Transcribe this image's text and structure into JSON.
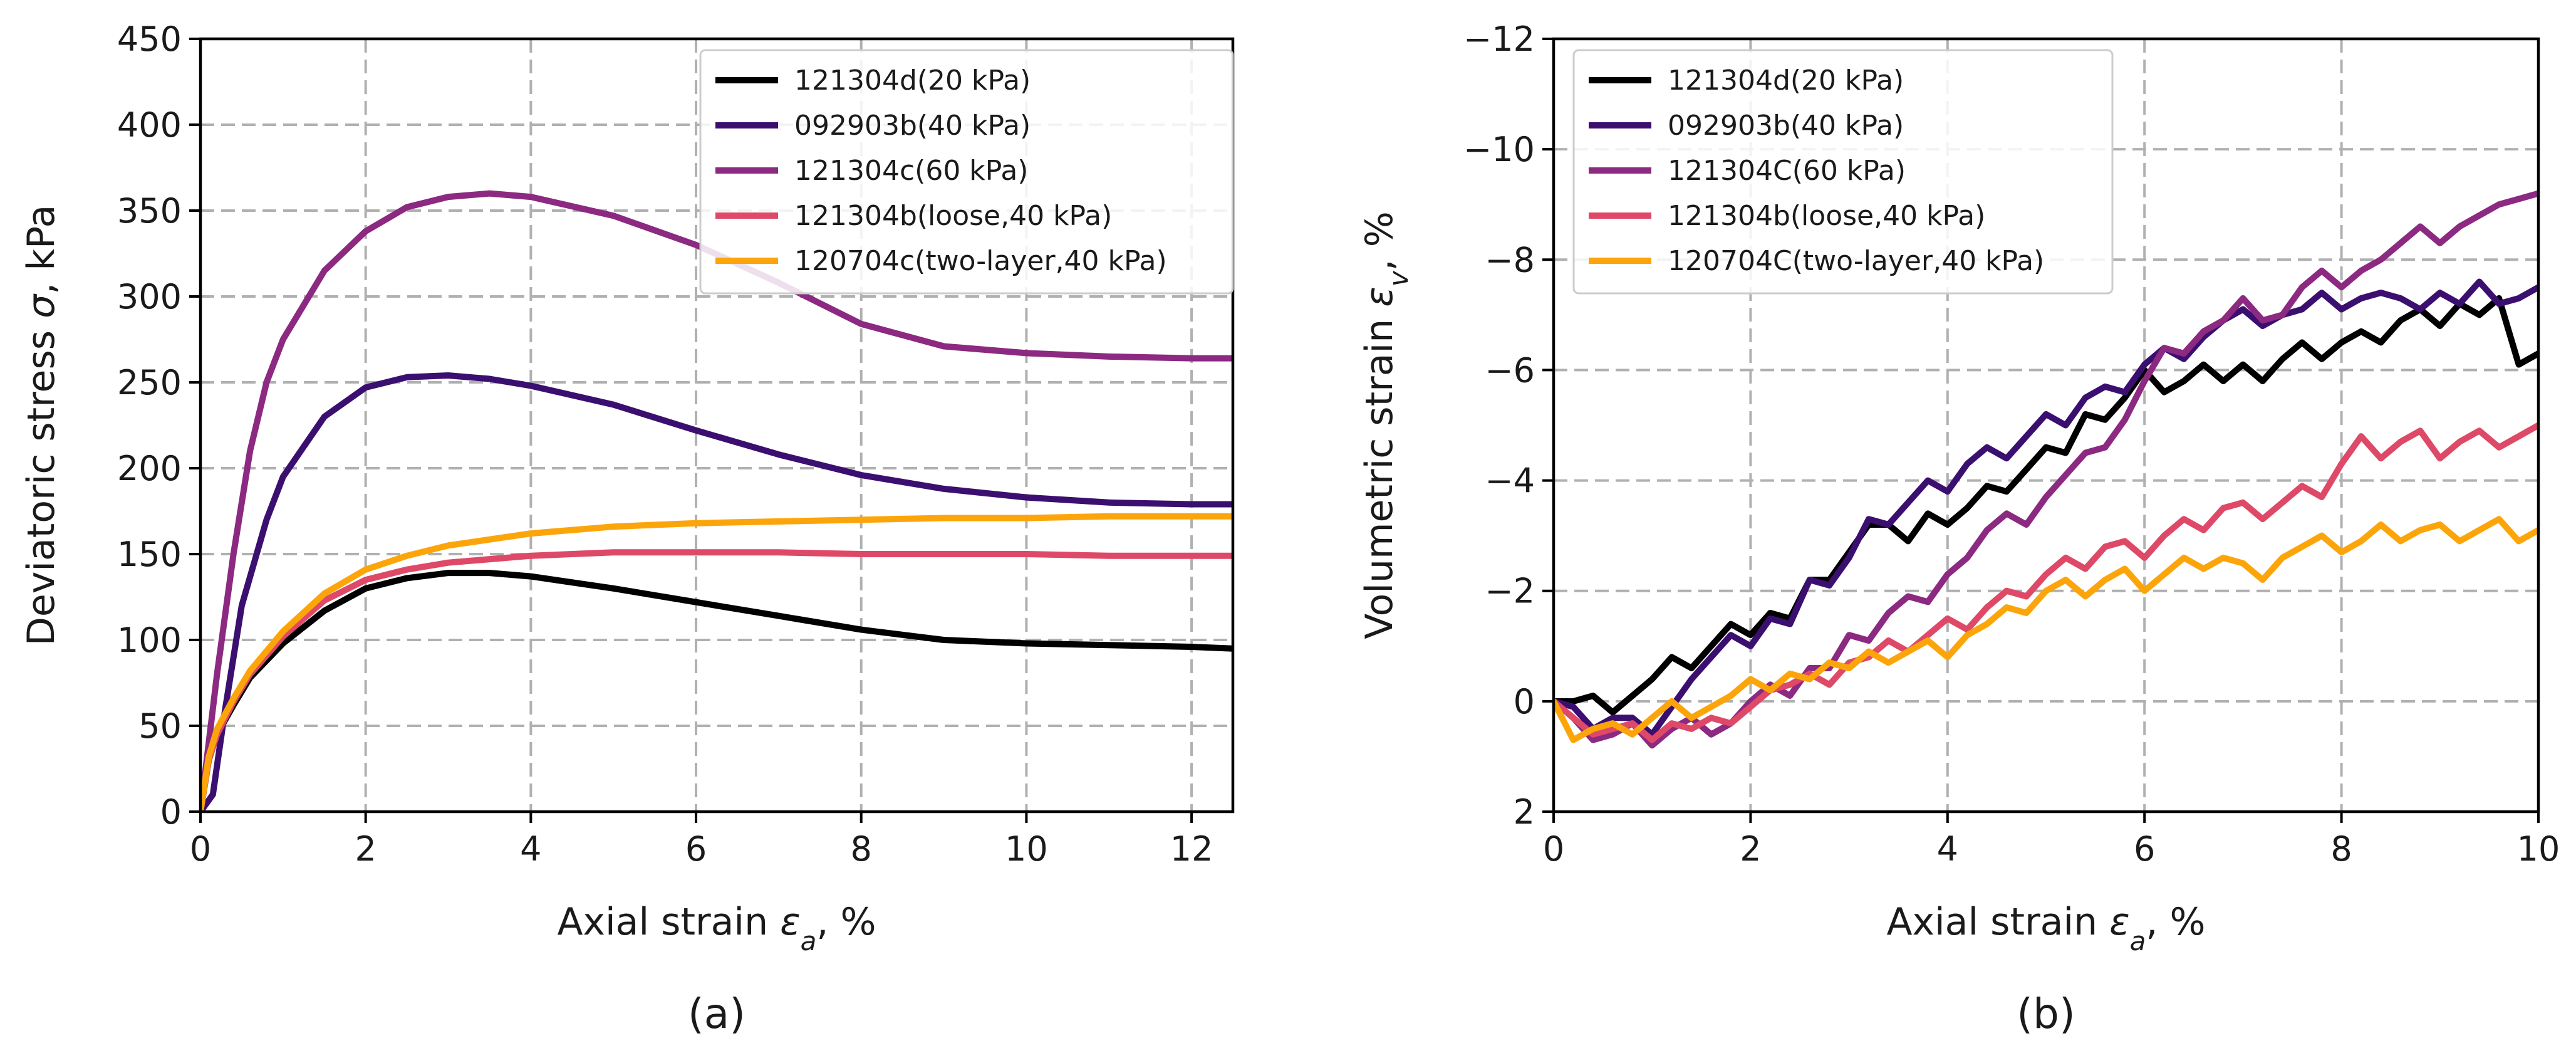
{
  "chart_data": [
    {
      "type": "line",
      "panel_label": "(a)",
      "xlabel": "Axial strain εa, %",
      "ylabel": "Deviatoric stress σ, kPa",
      "xlim": [
        0,
        12.5
      ],
      "ylim": [
        0,
        450
      ],
      "xticks": [
        0,
        2,
        4,
        6,
        8,
        10,
        12
      ],
      "yticks": [
        0,
        50,
        100,
        150,
        200,
        250,
        300,
        350,
        400,
        450
      ],
      "invert_y": false,
      "grid": true,
      "legend_position": "top-right",
      "series": [
        {
          "name": "121304d(20 kPa)",
          "color": "#000000",
          "x": [
            0,
            0.1,
            0.2,
            0.4,
            0.6,
            1.0,
            1.5,
            2.0,
            2.5,
            3.0,
            3.5,
            4.0,
            5.0,
            6.0,
            7.0,
            8.0,
            9.0,
            10.0,
            11.0,
            12.0,
            12.5
          ],
          "y": [
            0,
            30,
            45,
            62,
            78,
            98,
            117,
            130,
            136,
            139,
            139,
            137,
            130,
            122,
            114,
            106,
            100,
            98,
            97,
            96,
            95
          ]
        },
        {
          "name": "092903b(40 kPa)",
          "color": "#3b0f70",
          "x": [
            0,
            0.15,
            0.3,
            0.5,
            0.8,
            1.0,
            1.5,
            2.0,
            2.5,
            3.0,
            3.5,
            4.0,
            5.0,
            6.0,
            7.0,
            8.0,
            9.0,
            10.0,
            11.0,
            12.0,
            12.5
          ],
          "y": [
            0,
            10,
            60,
            120,
            170,
            195,
            230,
            247,
            253,
            254,
            252,
            248,
            237,
            222,
            208,
            196,
            188,
            183,
            180,
            179,
            179
          ]
        },
        {
          "name": "121304c(60 kPa)",
          "color": "#8c2981",
          "x": [
            0,
            0.2,
            0.4,
            0.6,
            0.8,
            1.0,
            1.5,
            2.0,
            2.5,
            3.0,
            3.5,
            4.0,
            5.0,
            6.0,
            7.0,
            8.0,
            9.0,
            10.0,
            11.0,
            12.0,
            12.5
          ],
          "y": [
            0,
            80,
            150,
            210,
            250,
            275,
            315,
            338,
            352,
            358,
            360,
            358,
            347,
            330,
            308,
            284,
            271,
            267,
            265,
            264,
            264
          ]
        },
        {
          "name": "121304b(loose,40 kPa)",
          "color": "#de4968",
          "x": [
            0,
            0.1,
            0.2,
            0.4,
            0.6,
            1.0,
            1.5,
            2.0,
            2.5,
            3.0,
            4.0,
            5.0,
            6.0,
            7.0,
            8.0,
            9.0,
            10.0,
            11.0,
            12.0,
            12.5
          ],
          "y": [
            0,
            30,
            45,
            64,
            80,
            102,
            123,
            135,
            141,
            145,
            149,
            151,
            151,
            151,
            150,
            150,
            150,
            149,
            149,
            149
          ]
        },
        {
          "name": "120704c(two-layer,40 kPa)",
          "color": "#fca50a",
          "x": [
            0,
            0.1,
            0.2,
            0.4,
            0.6,
            1.0,
            1.5,
            2.0,
            2.5,
            3.0,
            4.0,
            5.0,
            6.0,
            7.0,
            8.0,
            9.0,
            10.0,
            11.0,
            12.0,
            12.5
          ],
          "y": [
            0,
            32,
            48,
            66,
            82,
            105,
            127,
            141,
            149,
            155,
            162,
            166,
            168,
            169,
            170,
            171,
            171,
            172,
            172,
            172
          ]
        }
      ]
    },
    {
      "type": "line",
      "panel_label": "(b)",
      "xlabel": "Axial strain εa, %",
      "ylabel": "Volumetric strain εv, %",
      "xlim": [
        0,
        10
      ],
      "ylim": [
        2,
        -12
      ],
      "xticks": [
        0,
        2,
        4,
        6,
        8,
        10
      ],
      "yticks": [
        2,
        0,
        -2,
        -4,
        -6,
        -8,
        -10,
        -12
      ],
      "ytick_labels": [
        "2",
        "0",
        "−2",
        "−4",
        "−6",
        "−8",
        "−10",
        "−12"
      ],
      "invert_y": true,
      "grid": true,
      "legend_position": "top-left",
      "series": [
        {
          "name": "121304d(20 kPa)",
          "color": "#000000",
          "x": [
            0,
            0.2,
            0.4,
            0.6,
            0.8,
            1.0,
            1.2,
            1.4,
            1.6,
            1.8,
            2.0,
            2.2,
            2.4,
            2.6,
            2.8,
            3.0,
            3.2,
            3.4,
            3.6,
            3.8,
            4.0,
            4.2,
            4.4,
            4.6,
            4.8,
            5.0,
            5.2,
            5.4,
            5.6,
            5.8,
            6.0,
            6.2,
            6.4,
            6.6,
            6.8,
            7.0,
            7.2,
            7.4,
            7.6,
            7.8,
            8.0,
            8.2,
            8.4,
            8.6,
            8.8,
            9.0,
            9.2,
            9.4,
            9.6,
            9.8,
            10.0
          ],
          "y": [
            0,
            0,
            -0.1,
            0.2,
            -0.1,
            -0.4,
            -0.8,
            -0.6,
            -1.0,
            -1.4,
            -1.2,
            -1.6,
            -1.5,
            -2.2,
            -2.2,
            -2.7,
            -3.2,
            -3.2,
            -2.9,
            -3.4,
            -3.2,
            -3.5,
            -3.9,
            -3.8,
            -4.2,
            -4.6,
            -4.5,
            -5.2,
            -5.1,
            -5.5,
            -6.0,
            -5.6,
            -5.8,
            -6.1,
            -5.8,
            -6.1,
            -5.8,
            -6.2,
            -6.5,
            -6.2,
            -6.5,
            -6.7,
            -6.5,
            -6.9,
            -7.1,
            -6.8,
            -7.2,
            -7.0,
            -7.3,
            -6.1,
            -6.3
          ]
        },
        {
          "name": "092903b(40 kPa)",
          "color": "#3b0f70",
          "x": [
            0,
            0.2,
            0.4,
            0.6,
            0.8,
            1.0,
            1.2,
            1.4,
            1.6,
            1.8,
            2.0,
            2.2,
            2.4,
            2.6,
            2.8,
            3.0,
            3.2,
            3.4,
            3.6,
            3.8,
            4.0,
            4.2,
            4.4,
            4.6,
            4.8,
            5.0,
            5.2,
            5.4,
            5.6,
            5.8,
            6.0,
            6.2,
            6.4,
            6.6,
            6.8,
            7.0,
            7.2,
            7.4,
            7.6,
            7.8,
            8.0,
            8.2,
            8.4,
            8.6,
            8.8,
            9.0,
            9.2,
            9.4,
            9.6,
            9.8,
            10.0
          ],
          "y": [
            0,
            0.1,
            0.5,
            0.3,
            0.3,
            0.6,
            0.1,
            -0.4,
            -0.8,
            -1.2,
            -1.0,
            -1.5,
            -1.4,
            -2.2,
            -2.1,
            -2.6,
            -3.3,
            -3.2,
            -3.6,
            -4.0,
            -3.8,
            -4.3,
            -4.6,
            -4.4,
            -4.8,
            -5.2,
            -5.0,
            -5.5,
            -5.7,
            -5.6,
            -6.1,
            -6.4,
            -6.2,
            -6.6,
            -6.9,
            -7.1,
            -6.8,
            -7.0,
            -7.1,
            -7.4,
            -7.1,
            -7.3,
            -7.4,
            -7.3,
            -7.1,
            -7.4,
            -7.2,
            -7.6,
            -7.2,
            -7.3,
            -7.5
          ]
        },
        {
          "name": "121304C(60 kPa)",
          "color": "#8c2981",
          "x": [
            0,
            0.2,
            0.4,
            0.6,
            0.8,
            1.0,
            1.2,
            1.4,
            1.6,
            1.8,
            2.0,
            2.2,
            2.4,
            2.6,
            2.8,
            3.0,
            3.2,
            3.4,
            3.6,
            3.8,
            4.0,
            4.2,
            4.4,
            4.6,
            4.8,
            5.0,
            5.2,
            5.4,
            5.6,
            5.8,
            6.0,
            6.2,
            6.4,
            6.6,
            6.8,
            7.0,
            7.2,
            7.4,
            7.6,
            7.8,
            8.0,
            8.2,
            8.4,
            8.6,
            8.8,
            9.0,
            9.2,
            9.4,
            9.6,
            9.8,
            10.0
          ],
          "y": [
            0,
            0.3,
            0.7,
            0.6,
            0.4,
            0.8,
            0.5,
            0.3,
            0.6,
            0.4,
            0,
            -0.3,
            -0.1,
            -0.6,
            -0.6,
            -1.2,
            -1.1,
            -1.6,
            -1.9,
            -1.8,
            -2.3,
            -2.6,
            -3.1,
            -3.4,
            -3.2,
            -3.7,
            -4.1,
            -4.5,
            -4.6,
            -5.1,
            -5.8,
            -6.4,
            -6.3,
            -6.7,
            -6.9,
            -7.3,
            -6.9,
            -7.0,
            -7.5,
            -7.8,
            -7.5,
            -7.8,
            -8.0,
            -8.3,
            -8.6,
            -8.3,
            -8.6,
            -8.8,
            -9.0,
            -9.1,
            -9.2
          ]
        },
        {
          "name": "121304b(loose,40 kPa)",
          "color": "#de4968",
          "x": [
            0,
            0.2,
            0.4,
            0.6,
            0.8,
            1.0,
            1.2,
            1.4,
            1.6,
            1.8,
            2.0,
            2.2,
            2.4,
            2.6,
            2.8,
            3.0,
            3.2,
            3.4,
            3.6,
            3.8,
            4.0,
            4.2,
            4.4,
            4.6,
            4.8,
            5.0,
            5.2,
            5.4,
            5.6,
            5.8,
            6.0,
            6.2,
            6.4,
            6.6,
            6.8,
            7.0,
            7.2,
            7.4,
            7.6,
            7.8,
            8.0,
            8.2,
            8.4,
            8.6,
            8.8,
            9.0,
            9.2,
            9.4,
            9.6,
            9.8,
            10.0
          ],
          "y": [
            0,
            0.3,
            0.6,
            0.5,
            0.4,
            0.7,
            0.4,
            0.5,
            0.3,
            0.4,
            0.1,
            -0.2,
            -0.3,
            -0.5,
            -0.3,
            -0.7,
            -0.8,
            -1.1,
            -0.9,
            -1.2,
            -1.5,
            -1.3,
            -1.7,
            -2.0,
            -1.9,
            -2.3,
            -2.6,
            -2.4,
            -2.8,
            -2.9,
            -2.6,
            -3.0,
            -3.3,
            -3.1,
            -3.5,
            -3.6,
            -3.3,
            -3.6,
            -3.9,
            -3.7,
            -4.3,
            -4.8,
            -4.4,
            -4.7,
            -4.9,
            -4.4,
            -4.7,
            -4.9,
            -4.6,
            -4.8,
            -5.0
          ]
        },
        {
          "name": "120704C(two-layer,40 kPa)",
          "color": "#fca50a",
          "x": [
            0,
            0.2,
            0.4,
            0.6,
            0.8,
            1.0,
            1.2,
            1.4,
            1.6,
            1.8,
            2.0,
            2.2,
            2.4,
            2.6,
            2.8,
            3.0,
            3.2,
            3.4,
            3.6,
            3.8,
            4.0,
            4.2,
            4.4,
            4.6,
            4.8,
            5.0,
            5.2,
            5.4,
            5.6,
            5.8,
            6.0,
            6.2,
            6.4,
            6.6,
            6.8,
            7.0,
            7.2,
            7.4,
            7.6,
            7.8,
            8.0,
            8.2,
            8.4,
            8.6,
            8.8,
            9.0,
            9.2,
            9.4,
            9.6,
            9.8,
            10.0
          ],
          "y": [
            0,
            0.7,
            0.5,
            0.4,
            0.6,
            0.3,
            0,
            0.3,
            0.1,
            -0.1,
            -0.4,
            -0.2,
            -0.5,
            -0.4,
            -0.7,
            -0.6,
            -0.9,
            -0.7,
            -0.9,
            -1.1,
            -0.8,
            -1.2,
            -1.4,
            -1.7,
            -1.6,
            -2.0,
            -2.2,
            -1.9,
            -2.2,
            -2.4,
            -2.0,
            -2.3,
            -2.6,
            -2.4,
            -2.6,
            -2.5,
            -2.2,
            -2.6,
            -2.8,
            -3.0,
            -2.7,
            -2.9,
            -3.2,
            -2.9,
            -3.1,
            -3.2,
            -2.9,
            -3.1,
            -3.3,
            -2.9,
            -3.1
          ]
        }
      ]
    }
  ]
}
